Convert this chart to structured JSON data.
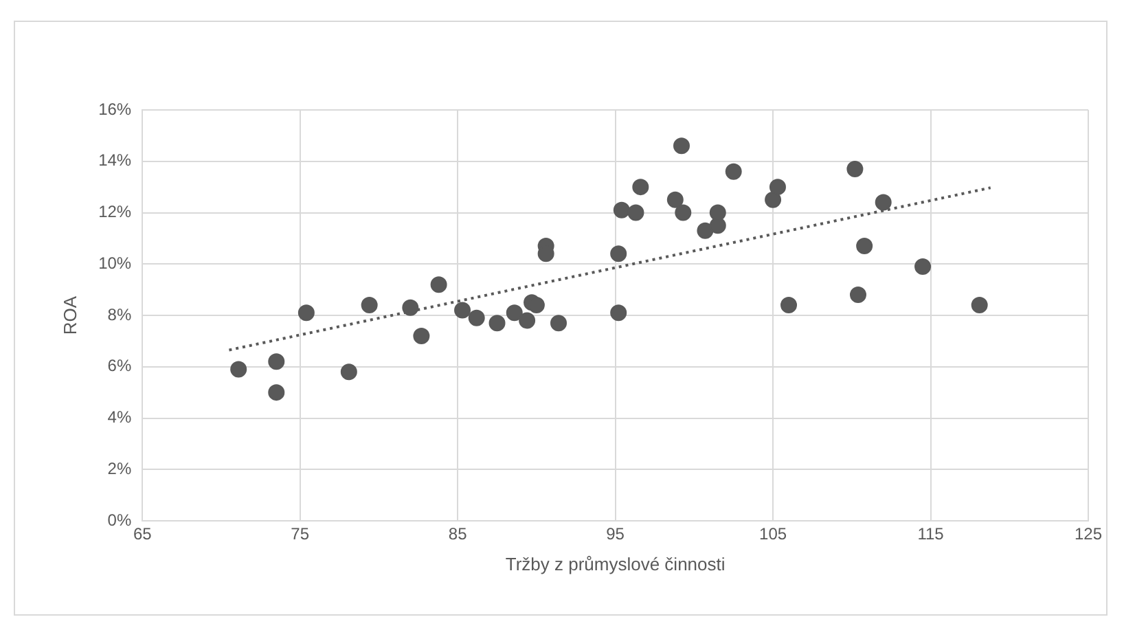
{
  "chart_data": {
    "type": "scatter",
    "xlabel": "Tržby z průmyslové činnosti",
    "ylabel": "ROA",
    "xlim": [
      65,
      125
    ],
    "xticks": [
      65,
      75,
      85,
      95,
      105,
      115,
      125
    ],
    "ylim": [
      0,
      16
    ],
    "yticks": [
      {
        "value": 0,
        "label": "0%"
      },
      {
        "value": 2,
        "label": "2%"
      },
      {
        "value": 4,
        "label": "4%"
      },
      {
        "value": 6,
        "label": "6%"
      },
      {
        "value": 8,
        "label": "8%"
      },
      {
        "value": 10,
        "label": "10%"
      },
      {
        "value": 12,
        "label": "12%"
      },
      {
        "value": 14,
        "label": "14%"
      },
      {
        "value": 16,
        "label": "16%"
      }
    ],
    "grid": true,
    "legend": false,
    "marker": "circle",
    "series": [
      {
        "color": "#595959",
        "x": [
          71.1,
          73.5,
          73.5,
          75.4,
          78.1,
          79.4,
          82.0,
          82.7,
          83.8,
          85.3,
          86.2,
          87.5,
          88.6,
          89.4,
          89.7,
          90.0,
          90.6,
          90.6,
          91.4,
          95.2,
          95.2,
          95.4,
          96.3,
          96.6,
          98.8,
          99.2,
          99.3,
          100.7,
          101.5,
          101.5,
          102.5,
          105.0,
          105.3,
          106.0,
          110.2,
          110.4,
          110.8,
          112.0,
          114.5,
          118.1
        ],
        "values": [
          5.9,
          6.2,
          5.0,
          8.1,
          5.8,
          8.4,
          8.3,
          7.2,
          9.2,
          8.2,
          7.9,
          7.7,
          8.1,
          7.8,
          8.5,
          8.4,
          10.7,
          10.4,
          7.7,
          10.4,
          8.1,
          12.1,
          12.0,
          13.0,
          12.5,
          14.6,
          12.0,
          11.3,
          11.5,
          12.0,
          13.6,
          12.5,
          13.0,
          8.4,
          13.7,
          8.8,
          10.7,
          12.4,
          9.9,
          8.4
        ]
      },
      {
        "type": "line",
        "color": "#595959",
        "line_style": "dotted",
        "marker": "none",
        "x": [
          70.5,
          118.8
        ],
        "values": [
          6.65,
          12.97
        ]
      }
    ]
  }
}
